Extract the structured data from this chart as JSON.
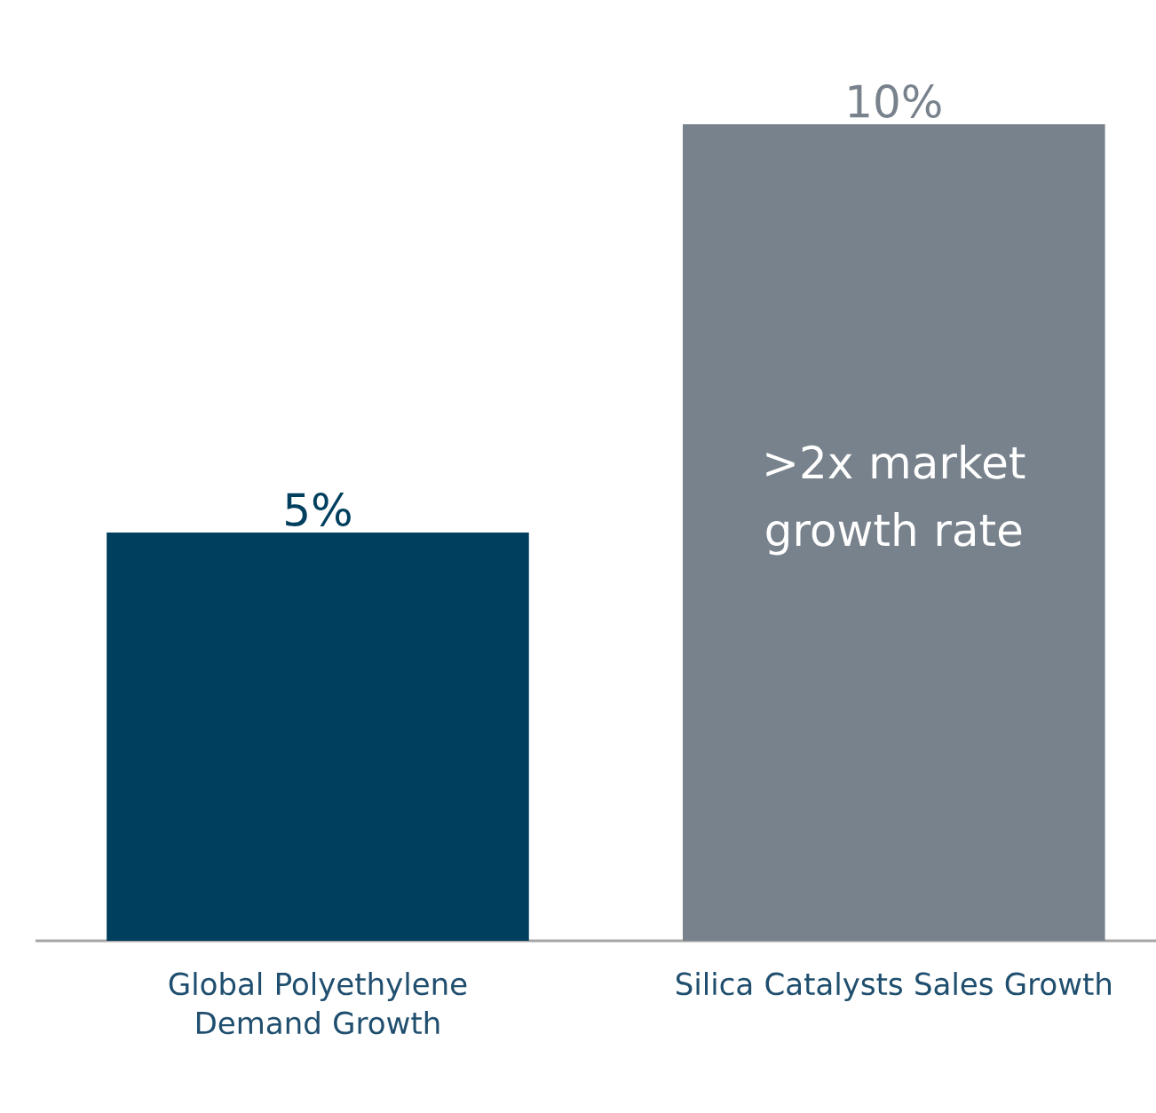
{
  "chart_data": {
    "type": "bar",
    "categories": [
      "Global Polyethylene Demand Growth",
      "Silica Catalysts Sales Growth"
    ],
    "values": [
      5,
      10
    ],
    "colors": [
      "#003f5e",
      "#78828c"
    ],
    "value_labels": [
      "5%",
      "10%"
    ],
    "ylim": [
      0,
      10
    ],
    "tick_labels": "x",
    "annotations": [
      ">2x market growth rate"
    ]
  }
}
